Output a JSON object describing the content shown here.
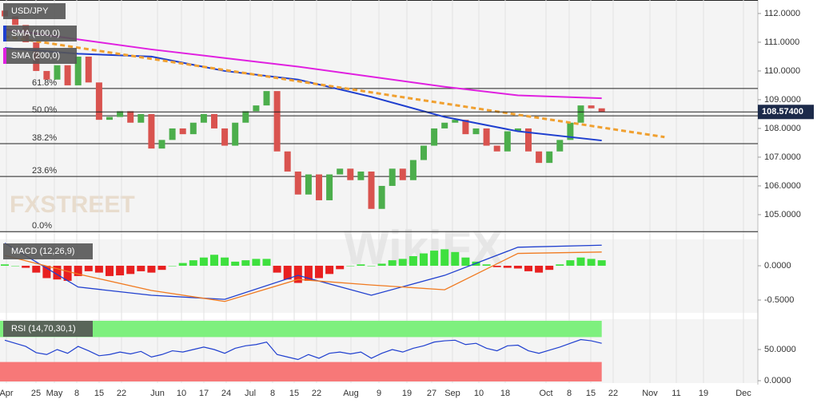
{
  "chart_data": {
    "type": "candlestick",
    "title": "USD/JPY",
    "watermarks": [
      "FXSTREET",
      "WikiFX"
    ],
    "up_color": "#4cae4c",
    "down_color": "#d9534f",
    "ylim": [
      104.36,
      112.47
    ],
    "yticks": [
      {
        "value": 105,
        "label": "105.0000"
      },
      {
        "value": 106,
        "label": "106.0000"
      },
      {
        "value": 107,
        "label": "107.0000"
      },
      {
        "value": 108,
        "label": "108.0000"
      },
      {
        "value": 109,
        "label": "109.0000"
      },
      {
        "value": 110,
        "label": "110.0000"
      },
      {
        "value": 111,
        "label": "111.0000"
      },
      {
        "value": 112,
        "label": "112.0000"
      }
    ],
    "last_price": {
      "value": 108.574,
      "label": "108.57400"
    },
    "x_labels": [
      "Apr",
      "25",
      "May",
      "8",
      "15",
      "22",
      "Jun",
      "10",
      "17",
      "24",
      "Jul",
      "8",
      "15",
      "22",
      "Aug",
      "9",
      "19",
      "27",
      "Sep",
      "10",
      "18",
      "Oct",
      "8",
      "15",
      "22",
      "Nov",
      "11",
      "19",
      "Dec"
    ],
    "fib_levels": [
      {
        "label": "61.8%",
        "value": 109.39
      },
      {
        "label": "50.0%",
        "value": 108.44
      },
      {
        "label": "38.2%",
        "value": 107.47
      },
      {
        "label": "23.6%",
        "value": 106.33
      },
      {
        "label": "0.0%",
        "value": 104.41
      }
    ],
    "candles": {
      "open": [
        112.1,
        111.9,
        111.6,
        111.0,
        110.0,
        109.7,
        110.2,
        109.5,
        110.5,
        109.6,
        108.3,
        108.4,
        108.6,
        108.2,
        108.5,
        107.3,
        107.6,
        108.0,
        107.8,
        108.2,
        108.5,
        108.0,
        107.4,
        108.2,
        108.6,
        108.8,
        109.3,
        107.2,
        106.5,
        105.7,
        106.4,
        105.5,
        106.4,
        106.6,
        106.2,
        106.5,
        105.2,
        106.0,
        106.6,
        106.2,
        106.9,
        107.4,
        108.0,
        108.2,
        108.3,
        107.8,
        108.0,
        107.4,
        107.2,
        107.9,
        108.0,
        107.2,
        106.8,
        107.2,
        107.6,
        108.2,
        108.8,
        108.7
      ],
      "close": [
        111.9,
        111.6,
        111.0,
        110.0,
        109.7,
        110.2,
        109.5,
        110.5,
        109.6,
        108.3,
        108.4,
        108.6,
        108.2,
        108.5,
        107.3,
        107.6,
        108.0,
        107.8,
        108.2,
        108.5,
        108.0,
        107.4,
        108.2,
        108.6,
        108.8,
        109.3,
        107.2,
        106.5,
        105.7,
        106.4,
        105.5,
        106.4,
        106.6,
        106.2,
        106.5,
        105.2,
        106.0,
        106.6,
        106.2,
        106.9,
        107.4,
        108.0,
        108.2,
        108.3,
        107.8,
        108.0,
        107.4,
        107.2,
        107.9,
        108.0,
        107.2,
        106.8,
        107.2,
        107.6,
        108.2,
        108.8,
        108.7,
        108.57
      ]
    },
    "overlay_x": [
      0,
      7,
      14,
      21,
      28,
      35,
      42,
      49,
      57
    ],
    "overlays": [
      {
        "name": "SMA (100,0)",
        "color": "#1f3fcf",
        "values": [
          110.8,
          110.6,
          110.5,
          110.0,
          109.7,
          109.1,
          108.4,
          107.9,
          107.58
        ]
      },
      {
        "name": "SMA (200,0)",
        "color": "#e020e0",
        "values": [
          111.45,
          111.1,
          110.75,
          110.45,
          110.15,
          109.8,
          109.45,
          109.15,
          109.05
        ]
      }
    ],
    "trendline": {
      "color": "#f0a030",
      "x": [
        0,
        63
      ],
      "values": [
        111.2,
        107.7
      ]
    },
    "macd": {
      "label": "MACD (12,26,9)",
      "ylim": [
        -0.686,
        0.384
      ],
      "yticks": [
        {
          "value": 0,
          "label": "0.0000"
        },
        {
          "value": -0.5,
          "label": "-0.5000"
        }
      ],
      "histogram": [
        0.02,
        0.0,
        -0.03,
        -0.1,
        -0.18,
        -0.2,
        -0.22,
        -0.15,
        -0.08,
        -0.1,
        -0.15,
        -0.14,
        -0.12,
        -0.08,
        -0.1,
        -0.06,
        0.0,
        0.04,
        0.08,
        0.12,
        0.16,
        0.12,
        0.06,
        0.08,
        0.1,
        0.1,
        -0.1,
        -0.2,
        -0.25,
        -0.22,
        -0.18,
        -0.12,
        -0.05,
        0.0,
        0.02,
        0.0,
        0.03,
        0.08,
        0.1,
        0.14,
        0.18,
        0.22,
        0.24,
        0.2,
        0.12,
        0.06,
        0.02,
        -0.02,
        -0.03,
        -0.04,
        -0.08,
        -0.1,
        -0.06,
        0.02,
        0.08,
        0.12,
        0.1,
        0.08
      ],
      "macd_color": "#1f3fcf",
      "signal_color": "#f07a20",
      "macd": [
        0.33,
        -0.31,
        -0.43,
        -0.49,
        -0.14,
        -0.43,
        -0.14,
        0.27,
        0.3
      ],
      "signal": [
        0.15,
        -0.12,
        -0.36,
        -0.52,
        -0.2,
        -0.28,
        -0.35,
        0.18,
        0.2
      ]
    },
    "rsi": {
      "label": "RSI (14,70,30,1)",
      "ylim": [
        -3.8,
        98.7
      ],
      "levels": [
        30,
        70
      ],
      "color": "#1f3fcf",
      "yticks": [
        {
          "value": 50,
          "label": "50.0000"
        },
        {
          "value": 0,
          "label": "0.0000"
        }
      ],
      "values": [
        65,
        60,
        55,
        45,
        42,
        50,
        44,
        55,
        48,
        40,
        42,
        46,
        43,
        47,
        38,
        42,
        48,
        46,
        50,
        54,
        50,
        44,
        52,
        56,
        58,
        62,
        42,
        38,
        34,
        42,
        36,
        44,
        46,
        43,
        46,
        36,
        44,
        50,
        46,
        52,
        56,
        62,
        64,
        65,
        58,
        60,
        52,
        48,
        56,
        57,
        48,
        44,
        49,
        54,
        60,
        66,
        64,
        60
      ]
    }
  }
}
